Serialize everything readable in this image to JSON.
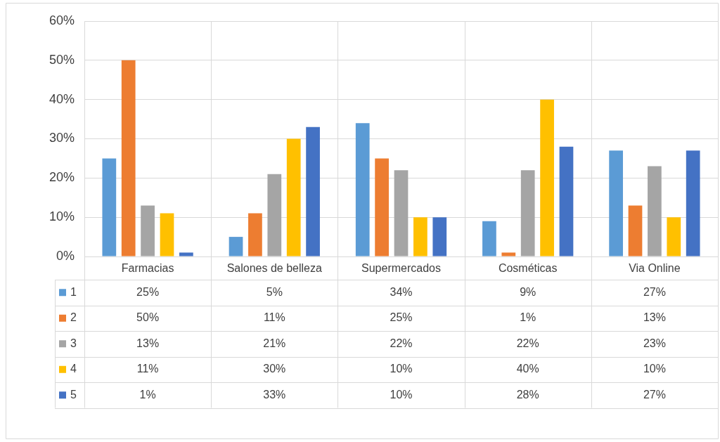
{
  "chart_data": {
    "type": "bar",
    "categories": [
      "Farmacias",
      "Salones de belleza",
      "Supermercados",
      "Cosméticas",
      "Via Online"
    ],
    "series": [
      {
        "name": "1",
        "color": "#5b9bd5",
        "values": [
          25,
          5,
          34,
          9,
          27
        ],
        "value_labels": [
          "25%",
          "5%",
          "34%",
          "9%",
          "27%"
        ]
      },
      {
        "name": "2",
        "color": "#ed7d31",
        "values": [
          50,
          11,
          25,
          1,
          13
        ],
        "value_labels": [
          "50%",
          "11%",
          "25%",
          "1%",
          "13%"
        ]
      },
      {
        "name": "3",
        "color": "#a5a5a5",
        "values": [
          13,
          21,
          22,
          22,
          23
        ],
        "value_labels": [
          "13%",
          "21%",
          "22%",
          "22%",
          "23%"
        ]
      },
      {
        "name": "4",
        "color": "#ffc000",
        "values": [
          11,
          30,
          10,
          40,
          10
        ],
        "value_labels": [
          "11%",
          "30%",
          "10%",
          "40%",
          "10%"
        ]
      },
      {
        "name": "5",
        "color": "#4472c4",
        "values": [
          1,
          33,
          10,
          28,
          27
        ],
        "value_labels": [
          "1%",
          "33%",
          "10%",
          "28%",
          "27%"
        ]
      }
    ],
    "ylim": [
      0,
      60
    ],
    "yticks": [
      {
        "value": 0,
        "label": "0%"
      },
      {
        "value": 10,
        "label": "10%"
      },
      {
        "value": 20,
        "label": "20%"
      },
      {
        "value": 30,
        "label": "30%"
      },
      {
        "value": 40,
        "label": "40%"
      },
      {
        "value": 50,
        "label": "50%"
      },
      {
        "value": 60,
        "label": "60%"
      }
    ],
    "grid": true,
    "legend": "bottom"
  }
}
